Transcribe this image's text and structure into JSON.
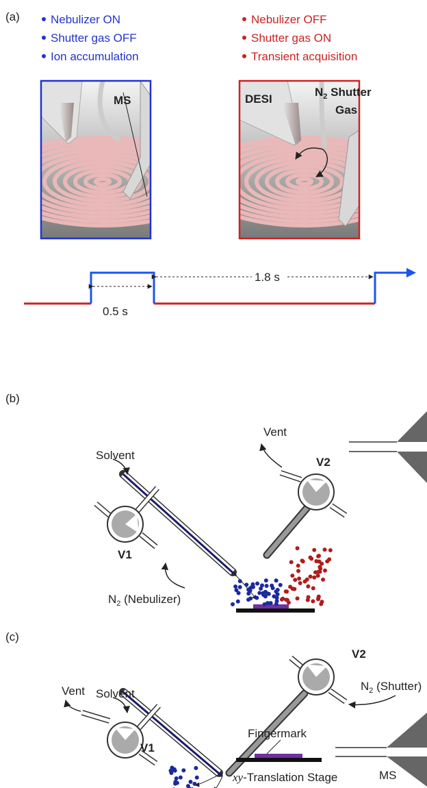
{
  "panel_a": {
    "label": "(a)",
    "left_conditions": [
      "Nebulizer ON",
      "Shutter gas OFF",
      "Ion accumulation"
    ],
    "right_conditions": [
      "Nebulizer OFF",
      "Shutter gas ON",
      "Transient acquisition"
    ],
    "left_image_label": "MS",
    "right_image_desi": "DESI",
    "right_image_shutter": {
      "main": "N",
      "sub": "2",
      "rest": " Shutter",
      "line2": "Gas"
    },
    "timing_short": "0.5 s",
    "timing_long": "1.8 s"
  },
  "panel_b": {
    "label": "(b)",
    "vent": "Vent",
    "v2": "V2",
    "solvent": "Solvent",
    "v1": "V1",
    "nebulizer": {
      "main": "N",
      "sub": "2",
      "rest": " (Nebulizer)"
    }
  },
  "panel_c": {
    "label": "(c)",
    "solvent": "Solvent",
    "v2": "V2",
    "shutter": {
      "main": "N",
      "sub": "2",
      "rest": " (Shutter)"
    },
    "vent": "Vent",
    "v1": "V1",
    "ms": "MS",
    "fingermark": "Fingermark",
    "stage": {
      "italic": "xy",
      "rest": "-Translation Stage"
    }
  }
}
